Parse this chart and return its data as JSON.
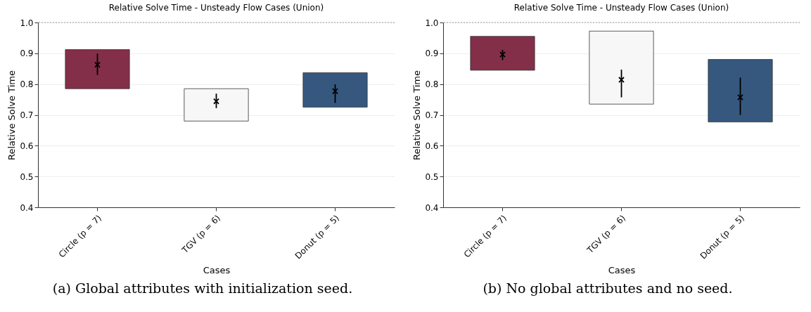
{
  "chart_data": [
    {
      "type": "bar",
      "title": "Relative Solve Time - Unsteady Flow Cases (Union)",
      "xlabel": "Cases",
      "ylabel": "Relative Solve Time",
      "categories": [
        "Circle (p = 7)",
        "TGV (p = 6)",
        "Donut (p = 5)"
      ],
      "series": [
        {
          "base": [
            0.785,
            0.68,
            0.725
          ],
          "values": [
            0.127,
            0.105,
            0.112
          ],
          "colors": [
            "#842f4a",
            "#f7f7f7",
            "#36587f"
          ]
        },
        {
          "type": "scatter",
          "x": [
            "Circle (p = 7)",
            "TGV (p = 6)",
            "Donut (p = 5)"
          ],
          "values": [
            0.863,
            0.744,
            0.777
          ],
          "errors": [
            [
              0.83,
              0.899
            ],
            [
              0.722,
              0.769
            ],
            [
              0.739,
              0.799
            ]
          ],
          "color": "#000000",
          "marker": "cross"
        }
      ],
      "ylim": [
        0.4,
        1.0
      ],
      "yticks": [
        0.4,
        0.5,
        0.6,
        0.7,
        0.8,
        0.9,
        {
          "value": 1.0,
          "label": "1.0"
        }
      ],
      "grid": "y",
      "ref_lines": [
        {
          "axis": "y",
          "value": 1.0,
          "color": "#999999",
          "line_style": "dotted"
        }
      ],
      "annotations": [
        "(a) Global attributes with initialization seed."
      ]
    },
    {
      "type": "bar",
      "title": "Relative Solve Time - Unsteady Flow Cases (Union)",
      "xlabel": "Cases",
      "ylabel": "Relative Solve Time",
      "categories": [
        "Circle (p = 7)",
        "TGV (p = 6)",
        "Donut (p = 5)"
      ],
      "series": [
        {
          "base": [
            0.845,
            0.735,
            0.677
          ],
          "values": [
            0.11,
            0.237,
            0.203
          ],
          "colors": [
            "#842f4a",
            "#f7f7f7",
            "#36587f"
          ]
        },
        {
          "type": "scatter",
          "x": [
            "Circle (p = 7)",
            "TGV (p = 6)",
            "Donut (p = 5)"
          ],
          "values": [
            0.896,
            0.814,
            0.757
          ],
          "errors": [
            [
              0.878,
              0.911
            ],
            [
              0.757,
              0.847
            ],
            [
              0.7,
              0.821
            ]
          ],
          "color": "#000000",
          "marker": "cross"
        }
      ],
      "ylim": [
        0.4,
        1.0
      ],
      "yticks": [
        0.4,
        0.5,
        0.6,
        0.7,
        0.8,
        0.9,
        {
          "value": 1.0,
          "label": "1.0"
        }
      ],
      "grid": "y",
      "ref_lines": [
        {
          "axis": "y",
          "value": 1.0,
          "color": "#999999",
          "line_style": "dotted"
        }
      ],
      "annotations": [
        "(b) No global attributes and no seed."
      ]
    }
  ]
}
